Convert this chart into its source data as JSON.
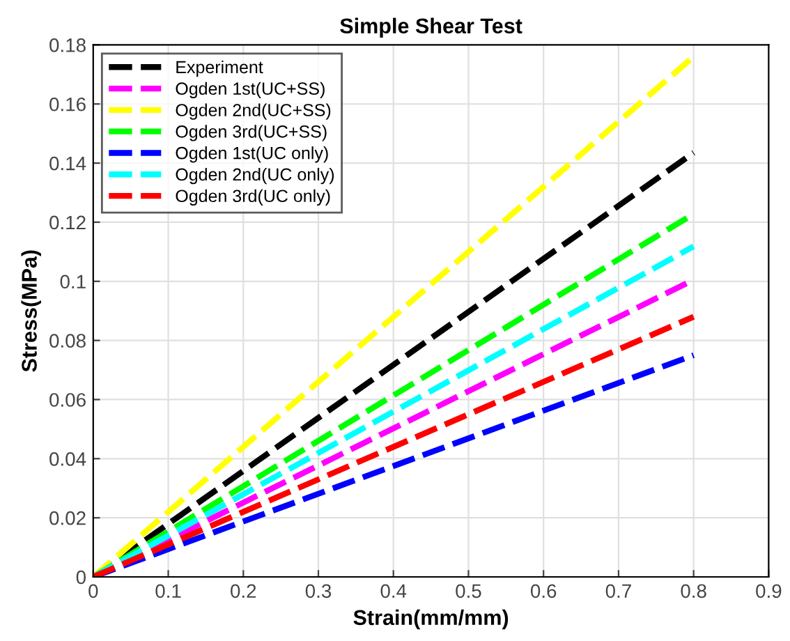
{
  "chart_data": {
    "type": "line",
    "title": "Simple Shear Test",
    "xlabel": "Strain(mm/mm)",
    "ylabel": "Stress(MPa)",
    "xlim": [
      0,
      0.9
    ],
    "xticks": [
      0,
      0.1,
      0.2,
      0.3,
      0.4,
      0.5,
      0.6,
      0.7,
      0.8,
      0.9
    ],
    "ylim": [
      0,
      0.18
    ],
    "yticks": [
      0,
      0.02,
      0.04,
      0.06,
      0.08,
      0.1,
      0.12,
      0.14,
      0.16,
      0.18
    ],
    "grid": true,
    "legend": "top left",
    "line_style": "dashed",
    "marker": "none",
    "x": [
      0,
      0.8
    ],
    "series": [
      {
        "name": "Experiment",
        "color": "#000000",
        "values": [
          0,
          0.1435
        ]
      },
      {
        "name": "Ogden 1st(UC+SS)",
        "color": "#ff00ff",
        "values": [
          0,
          0.1005
        ]
      },
      {
        "name": "Ogden 2nd(UC+SS)",
        "color": "#ffff00",
        "values": [
          0,
          0.176
        ]
      },
      {
        "name": "Ogden 3rd(UC+SS)",
        "color": "#00ff00",
        "values": [
          0,
          0.1228
        ]
      },
      {
        "name": "Ogden 1st(UC only)",
        "color": "#0000ff",
        "values": [
          0,
          0.075
        ]
      },
      {
        "name": "Ogden 2nd(UC only)",
        "color": "#00ffff",
        "values": [
          0,
          0.1118
        ]
      },
      {
        "name": "Ogden 3rd(UC only)",
        "color": "#ff0000",
        "values": [
          0,
          0.088
        ]
      }
    ]
  }
}
